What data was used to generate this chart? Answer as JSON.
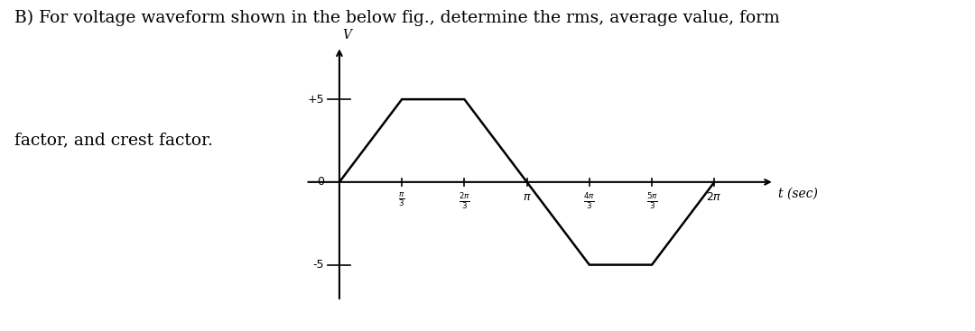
{
  "title_line1": "B) For voltage waveform shown in the below fig., determine the rms, average value, form",
  "title_line2": "factor, and crest factor.",
  "waveform_y": [
    0,
    5,
    5,
    0,
    -5,
    -5,
    0
  ],
  "ytick_vals": [
    -5,
    5
  ],
  "ytick_labels": [
    "-5",
    "+5"
  ],
  "y0_label": "0",
  "xlabel": "t (sec)",
  "ylabel": "V",
  "background_color": "#ffffff",
  "line_color": "#000000",
  "font_size_text": 13.5,
  "font_size_ticks": 9,
  "pi": 3.14159265358979
}
